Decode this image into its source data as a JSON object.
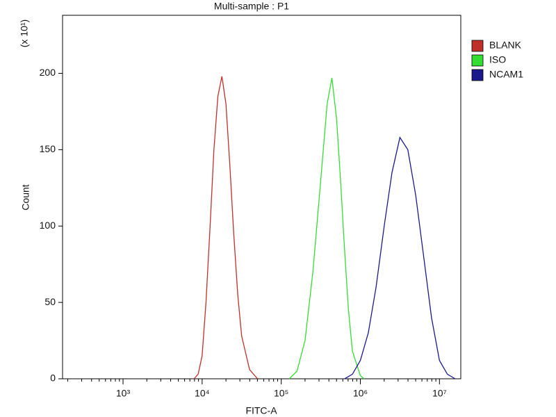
{
  "chart_data": {
    "type": "line",
    "title": "Multi-sample : P1",
    "x_label": "FITC-A",
    "y_label": "Count",
    "y_multiplier": "(x 10¹)",
    "xscale": "log",
    "xlim": [
      172,
      18600000
    ],
    "xticks": [
      {
        "value": 1000,
        "label": "10³"
      },
      {
        "value": 10000,
        "label": "10⁴"
      },
      {
        "value": 100000,
        "label": "10⁵"
      },
      {
        "value": 1000000,
        "label": "10⁶"
      },
      {
        "value": 10000000,
        "label": "10⁷"
      }
    ],
    "ylim": [
      0,
      238
    ],
    "yticks": [
      0,
      50,
      100,
      150,
      200
    ],
    "legend": "right",
    "series": [
      {
        "name": "BLANK",
        "color": "#c0302a",
        "x": [
          7900,
          8900,
          10000,
          11200,
          12600,
          14100,
          15800,
          17800,
          20000,
          22400,
          25100,
          28200,
          31600,
          39800,
          50100
        ],
        "values": [
          0,
          3,
          15,
          50,
          100,
          150,
          185,
          198,
          180,
          140,
          95,
          55,
          28,
          6,
          0
        ]
      },
      {
        "name": "ISO",
        "color": "#33dd33",
        "x": [
          126000,
          158000,
          200000,
          251000,
          316000,
          380000,
          437000,
          501000,
          562000,
          631000,
          708000,
          794000,
          1000000,
          1120000
        ],
        "values": [
          0,
          5,
          25,
          70,
          130,
          180,
          197,
          170,
          130,
          85,
          45,
          18,
          2,
          0
        ]
      },
      {
        "name": "NCAM1",
        "color": "#1a1a8c",
        "x": [
          631000,
          794000,
          1000000,
          1260000,
          1580000,
          2000000,
          2510000,
          3160000,
          3980000,
          5010000,
          6310000,
          7940000,
          10000000,
          12600000,
          15800000
        ],
        "values": [
          0,
          3,
          12,
          30,
          60,
          100,
          135,
          158,
          150,
          120,
          80,
          40,
          12,
          3,
          0
        ]
      }
    ]
  }
}
